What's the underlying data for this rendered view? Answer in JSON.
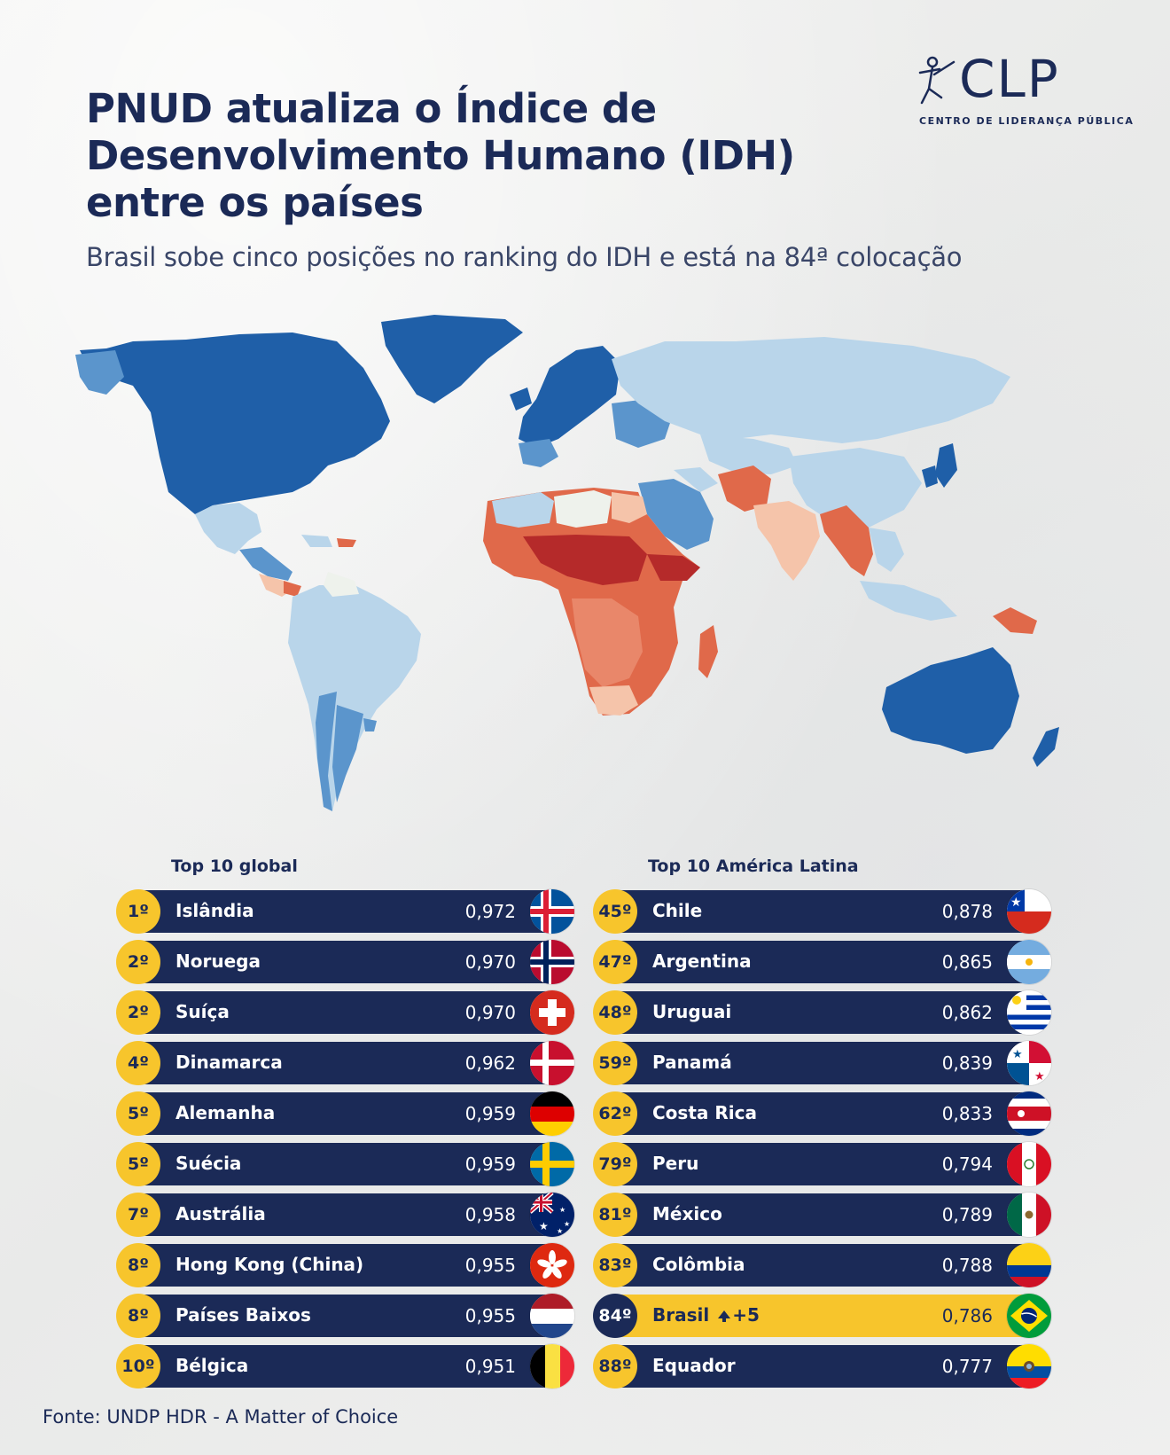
{
  "header": {
    "title": "PNUD atualiza o Índice de Desenvolvimento Humano (IDH) entre os países",
    "subtitle": "Brasil sobe cinco posições no ranking do IDH e está na 84ª colocação"
  },
  "logo": {
    "name": "CLP",
    "tagline": "CENTRO DE LIDERANÇA PÚBLICA"
  },
  "map": {
    "description_icon": "world-map-choropleth",
    "colors": {
      "very_high": "#1f5fa8",
      "high": "#5b95cc",
      "medium": "#b9d5ea",
      "neutral": "#eef2ec",
      "low_light": "#f5c4aa",
      "low": "#e0694a",
      "very_low": "#b52a2a"
    }
  },
  "global": {
    "title": "Top 10 global",
    "items": [
      {
        "rank": "1º",
        "name": "Islândia",
        "value": "0,972",
        "flag": "iceland-flag"
      },
      {
        "rank": "2º",
        "name": "Noruega",
        "value": "0,970",
        "flag": "norway-flag"
      },
      {
        "rank": "2º",
        "name": "Suíça",
        "value": "0,970",
        "flag": "switzerland-flag"
      },
      {
        "rank": "4º",
        "name": "Dinamarca",
        "value": "0,962",
        "flag": "denmark-flag"
      },
      {
        "rank": "5º",
        "name": "Alemanha",
        "value": "0,959",
        "flag": "germany-flag"
      },
      {
        "rank": "5º",
        "name": "Suécia",
        "value": "0,959",
        "flag": "sweden-flag"
      },
      {
        "rank": "7º",
        "name": "Austrália",
        "value": "0,958",
        "flag": "australia-flag"
      },
      {
        "rank": "8º",
        "name": "Hong Kong (China)",
        "value": "0,955",
        "flag": "hong-kong-flag"
      },
      {
        "rank": "8º",
        "name": "Países Baixos",
        "value": "0,955",
        "flag": "netherlands-flag"
      },
      {
        "rank": "10º",
        "name": "Bélgica",
        "value": "0,951",
        "flag": "belgium-flag"
      }
    ]
  },
  "latam": {
    "title": "Top 10 América Latina",
    "items": [
      {
        "rank": "45º",
        "name": "Chile",
        "value": "0,878",
        "flag": "chile-flag"
      },
      {
        "rank": "47º",
        "name": "Argentina",
        "value": "0,865",
        "flag": "argentina-flag"
      },
      {
        "rank": "48º",
        "name": "Uruguai",
        "value": "0,862",
        "flag": "uruguay-flag"
      },
      {
        "rank": "59º",
        "name": "Panamá",
        "value": "0,839",
        "flag": "panama-flag"
      },
      {
        "rank": "62º",
        "name": "Costa Rica",
        "value": "0,833",
        "flag": "costa-rica-flag"
      },
      {
        "rank": "79º",
        "name": "Peru",
        "value": "0,794",
        "flag": "peru-flag"
      },
      {
        "rank": "81º",
        "name": "México",
        "value": "0,789",
        "flag": "mexico-flag"
      },
      {
        "rank": "83º",
        "name": "Colômbia",
        "value": "0,788",
        "flag": "colombia-flag"
      },
      {
        "rank": "84º",
        "name": "Brasil",
        "value": "0,786",
        "flag": "brazil-flag",
        "change": "+5",
        "highlight": true
      },
      {
        "rank": "88º",
        "name": "Equador",
        "value": "0,777",
        "flag": "ecuador-flag"
      }
    ]
  },
  "footer": {
    "source": "Fonte: UNDP HDR - A Matter of Choice"
  }
}
